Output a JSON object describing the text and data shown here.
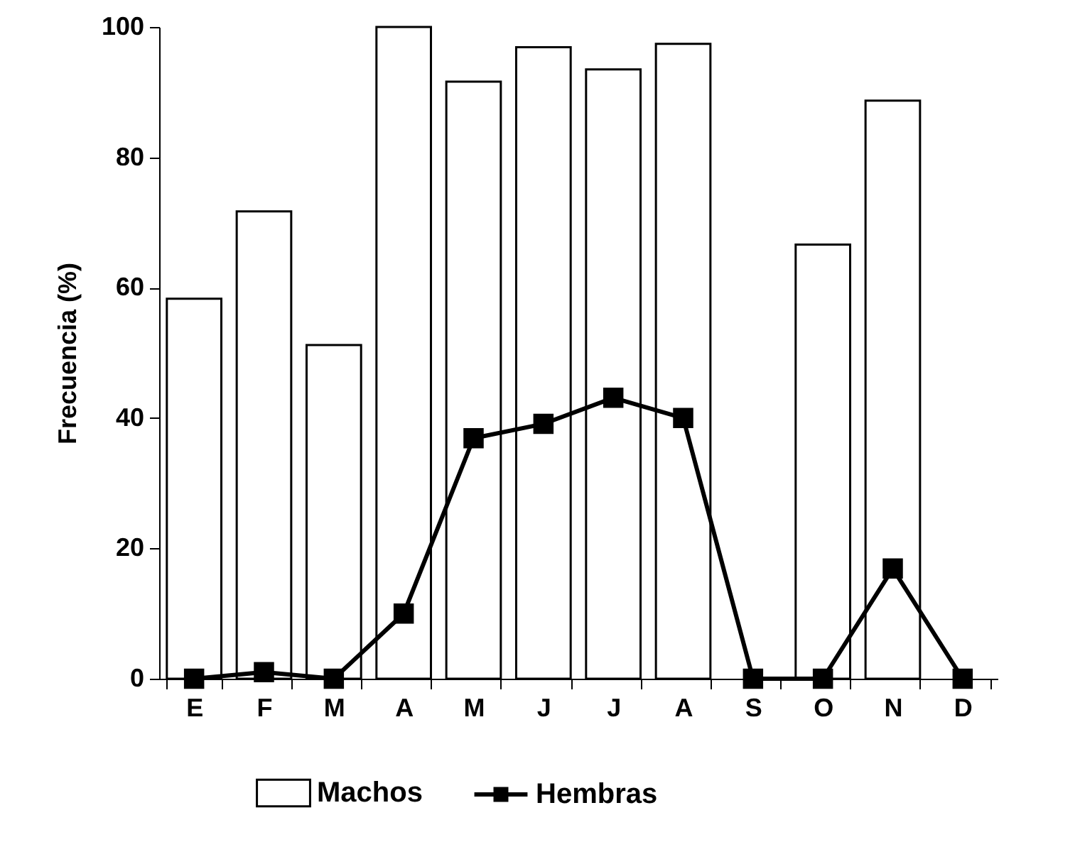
{
  "chart_data": {
    "type": "bar",
    "ylabel": "Frecuencia (%)",
    "categories": [
      "E",
      "F",
      "M",
      "A",
      "M",
      "J",
      "J",
      "A",
      "S",
      "O",
      "N",
      "D"
    ],
    "series": [
      {
        "name": "Machos",
        "color": "#ffffff",
        "values": [
          58.3,
          71.7,
          51.2,
          100,
          91.6,
          96.9,
          93.5,
          97.4,
          null,
          66.6,
          88.7,
          null
        ]
      },
      {
        "name": "Hembras",
        "type": "line",
        "color": "#000000",
        "values": [
          0,
          1,
          0,
          10,
          36.9,
          39.1,
          43.1,
          40,
          0,
          0,
          16.9,
          0
        ]
      }
    ],
    "ylim": [
      0,
      100
    ],
    "yticks": [
      0,
      20,
      40,
      60,
      80,
      100
    ],
    "grid": false,
    "legend": "bottom",
    "marker": "square",
    "line_style": "solid"
  }
}
